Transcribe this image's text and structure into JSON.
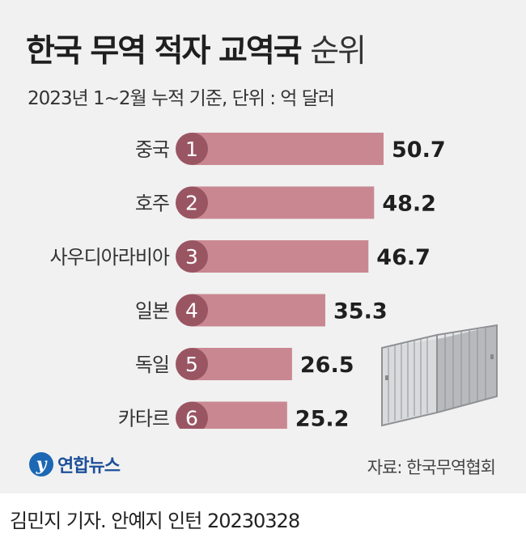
{
  "title_bold": "한국 무역 적자 교역국",
  "title_light": "순위",
  "subtitle": "2023년 1~2월 누적 기준, 단위 : 억 달러",
  "source": "자료: 한국무역협회",
  "logo_text": "연합뉴스",
  "credit": "김민지 기자. 안예지 인턴  20230328",
  "colors": {
    "bar": "#c98891",
    "rank_badge": "#9a5563",
    "background": "#f1f1f1"
  },
  "icons": [
    "shipping-container-icon",
    "yonhap-logo-icon"
  ],
  "chart_data": {
    "type": "bar",
    "orientation": "horizontal",
    "title": "한국 무역 적자 교역국 순위",
    "subtitle": "2023년 1~2월 누적 기준, 단위 : 억 달러",
    "categories": [
      "중국",
      "호주",
      "사우디아라비아",
      "일본",
      "독일",
      "카타르"
    ],
    "ranks": [
      "1",
      "2",
      "3",
      "4",
      "5",
      "6"
    ],
    "values": [
      50.7,
      48.2,
      46.7,
      35.3,
      26.5,
      25.2
    ],
    "value_labels": [
      "50.7",
      "48.2",
      "46.7",
      "35.3",
      "26.5",
      "25.2"
    ],
    "xlim": [
      0,
      50.7
    ],
    "grid": false,
    "legend": "none"
  }
}
